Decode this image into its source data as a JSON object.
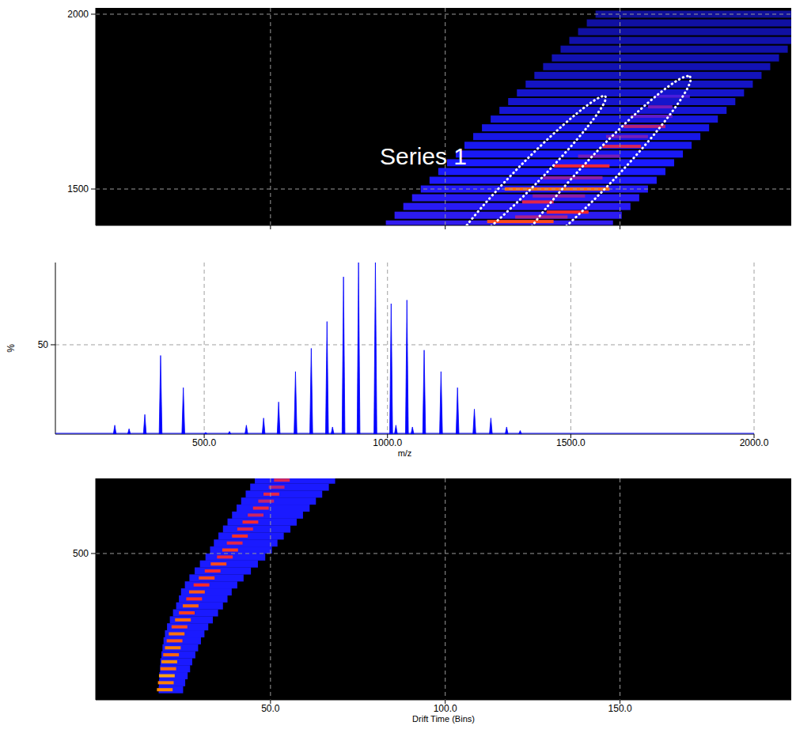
{
  "chart_data": [
    {
      "type": "heatmap",
      "annotation": "Series 1",
      "xlim": [
        0,
        199
      ],
      "ylim": [
        1396,
        2018
      ],
      "xticks": [
        50,
        100,
        150
      ],
      "yticks": [
        1500,
        2000
      ],
      "grid": true,
      "tick_labels": "y",
      "zlim": [
        0,
        100
      ],
      "cells": [
        [
          83,
          148,
          1400,
          35
        ],
        [
          85.5,
          150.5,
          1425,
          34
        ],
        [
          88,
          153,
          1450,
          33
        ],
        [
          90.5,
          155.5,
          1475,
          33
        ],
        [
          93,
          158,
          1500,
          32
        ],
        [
          95.5,
          160.5,
          1525,
          31
        ],
        [
          98,
          163,
          1550,
          30
        ],
        [
          100.5,
          165.5,
          1575,
          30
        ],
        [
          103,
          168,
          1600,
          29
        ],
        [
          105.5,
          170.5,
          1625,
          28
        ],
        [
          108,
          173,
          1650,
          27
        ],
        [
          110.5,
          175.5,
          1675,
          27
        ],
        [
          113,
          178,
          1700,
          26
        ],
        [
          115.5,
          180.5,
          1725,
          25
        ],
        [
          118,
          183,
          1750,
          24
        ],
        [
          120.5,
          185.5,
          1775,
          24
        ],
        [
          123,
          188,
          1800,
          23
        ],
        [
          125.5,
          190.5,
          1825,
          22
        ],
        [
          128,
          193,
          1850,
          21
        ],
        [
          130.5,
          195.5,
          1875,
          21
        ],
        [
          133,
          198,
          1900,
          20
        ],
        [
          135.5,
          200.5,
          1925,
          20
        ],
        [
          138,
          203,
          1950,
          19
        ],
        [
          140.5,
          205.5,
          1975,
          19
        ],
        [
          143,
          208,
          2000,
          18
        ],
        [
          112,
          131,
          1407,
          80
        ],
        [
          120,
          135,
          1420,
          60
        ],
        [
          129,
          141,
          1434,
          75
        ],
        [
          122,
          131,
          1463,
          70
        ],
        [
          125,
          140,
          1480,
          55
        ],
        [
          117,
          147,
          1500,
          85
        ],
        [
          128,
          145,
          1532,
          55
        ],
        [
          131,
          147,
          1566,
          72
        ],
        [
          138,
          150,
          1594,
          50
        ],
        [
          145,
          156,
          1622,
          68
        ],
        [
          146,
          158,
          1650,
          50
        ],
        [
          151,
          163,
          1679,
          62
        ],
        [
          153,
          165,
          1708,
          45
        ],
        [
          158,
          165,
          1735,
          50
        ],
        [
          160,
          170,
          1765,
          40
        ]
      ]
    },
    {
      "type": "stem",
      "xlabel": "m/z",
      "ylabel": "%",
      "color": "#0000ff",
      "grid": true,
      "xlim": [
        94,
        2000
      ],
      "ylim": [
        0,
        96
      ],
      "xticks": [
        {
          "value": 500,
          "label": "500.0"
        },
        {
          "value": 1000,
          "label": "1000.0"
        },
        {
          "value": 1500,
          "label": "1500.0"
        },
        {
          "value": 2000,
          "label": "2000.0"
        }
      ],
      "yticks": [
        50
      ],
      "x": [
        256,
        295,
        338,
        381,
        443,
        504,
        569,
        615,
        662,
        703,
        749,
        792,
        835,
        850,
        880,
        921,
        967,
        1010,
        1023,
        1053,
        1068,
        1100,
        1146,
        1191,
        1237,
        1282,
        1325,
        1362
      ],
      "values": [
        5,
        3,
        11,
        44,
        26,
        1,
        1.5,
        5,
        9,
        18,
        35,
        48,
        63,
        4,
        88,
        96,
        96,
        73,
        5,
        75,
        4,
        47,
        35,
        26,
        14,
        9,
        4,
        2
      ]
    },
    {
      "type": "heatmap",
      "xlabel": "Drift Time (Bins)",
      "xlim": [
        0,
        199
      ],
      "ylim": [
        81,
        715
      ],
      "xticks": [
        {
          "value": 50,
          "label": "50.0"
        },
        {
          "value": 100,
          "label": "100.0"
        },
        {
          "value": 150,
          "label": "150.0"
        }
      ],
      "yticks": [
        500
      ],
      "grid": true,
      "zlim": [
        0,
        100
      ],
      "cells": [
        [
          18,
          25,
          110,
          30
        ],
        [
          18.1,
          25.6,
          130,
          30
        ],
        [
          18.2,
          26.3,
          150,
          30
        ],
        [
          18.4,
          27,
          170,
          30
        ],
        [
          18.5,
          27.6,
          190,
          30
        ],
        [
          18.8,
          28.5,
          210,
          30
        ],
        [
          19.1,
          29.3,
          230,
          30
        ],
        [
          19.4,
          30.1,
          250,
          30
        ],
        [
          19.8,
          31.1,
          270,
          30
        ],
        [
          20.4,
          32.2,
          290,
          30
        ],
        [
          21.2,
          33.5,
          310,
          30
        ],
        [
          22.1,
          35,
          330,
          30
        ],
        [
          23,
          36.4,
          350,
          30
        ],
        [
          23.8,
          37.7,
          370,
          30
        ],
        [
          24.4,
          38.9,
          390,
          30
        ],
        [
          25.5,
          40.5,
          410,
          30
        ],
        [
          26.8,
          42.3,
          430,
          30
        ],
        [
          28.3,
          44.4,
          450,
          30
        ],
        [
          29.8,
          46.4,
          470,
          30
        ],
        [
          31.4,
          48.5,
          490,
          30
        ],
        [
          32.7,
          50.4,
          510,
          30
        ],
        [
          33.8,
          52,
          530,
          30
        ],
        [
          35.1,
          53.8,
          550,
          30
        ],
        [
          36.4,
          55.7,
          570,
          30
        ],
        [
          37.7,
          57.5,
          590,
          30
        ],
        [
          39,
          59.3,
          610,
          30
        ],
        [
          40.3,
          61.2,
          630,
          30
        ],
        [
          41.6,
          63,
          650,
          30
        ],
        [
          42.9,
          64.8,
          670,
          30
        ],
        [
          44.2,
          66.7,
          690,
          30
        ],
        [
          45.5,
          68.5,
          710,
          30
        ],
        [
          17.5,
          22,
          110,
          90
        ],
        [
          17.8,
          22.3,
          130,
          88
        ],
        [
          18.1,
          22.6,
          150,
          92
        ],
        [
          18.5,
          23,
          170,
          85
        ],
        [
          18.8,
          23.3,
          190,
          90
        ],
        [
          19.3,
          23.8,
          210,
          84
        ],
        [
          19.8,
          24.3,
          230,
          88
        ],
        [
          20.3,
          24.8,
          250,
          82
        ],
        [
          20.9,
          25.4,
          270,
          86
        ],
        [
          21.7,
          26.2,
          290,
          80
        ],
        [
          22.7,
          27.2,
          310,
          85
        ],
        [
          23.8,
          28.3,
          330,
          78
        ],
        [
          24.9,
          29.4,
          350,
          84
        ],
        [
          25.9,
          30.4,
          370,
          76
        ],
        [
          26.7,
          31.2,
          390,
          82
        ],
        [
          28,
          32.5,
          410,
          75
        ],
        [
          29.5,
          34,
          430,
          80
        ],
        [
          31.2,
          35.7,
          450,
          74
        ],
        [
          32.9,
          37.4,
          470,
          80
        ],
        [
          34.7,
          39.2,
          490,
          72
        ],
        [
          36.2,
          40.7,
          510,
          78
        ],
        [
          37.5,
          42,
          530,
          70
        ],
        [
          39,
          43.5,
          550,
          76
        ],
        [
          40.5,
          45,
          570,
          68
        ],
        [
          42,
          46.5,
          590,
          74
        ],
        [
          43.5,
          48,
          610,
          66
        ],
        [
          45,
          49.5,
          630,
          72
        ],
        [
          46.5,
          51,
          650,
          64
        ],
        [
          48,
          52.5,
          670,
          70
        ],
        [
          49.5,
          54,
          690,
          62
        ],
        [
          51,
          55.5,
          710,
          68
        ]
      ]
    }
  ]
}
